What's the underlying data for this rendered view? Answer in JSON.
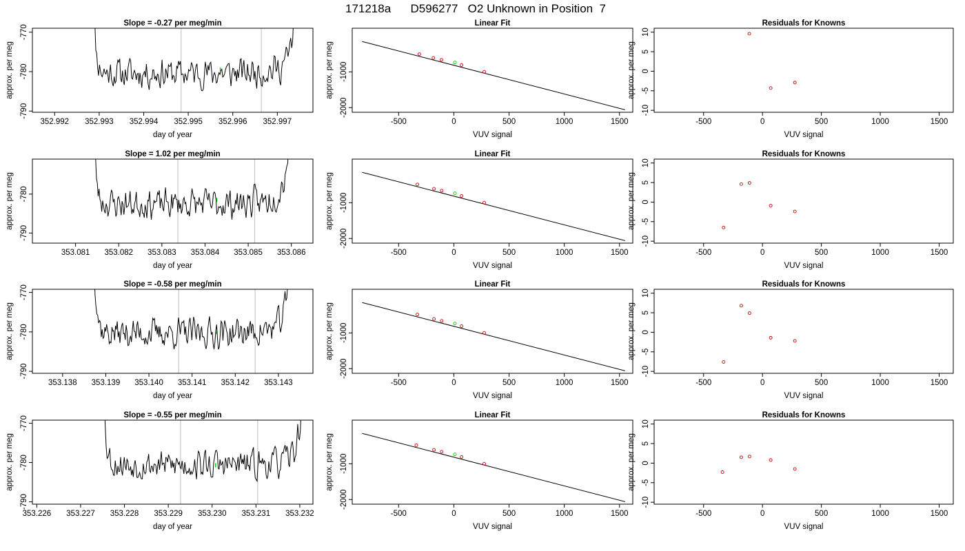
{
  "figure": {
    "supertitle": "171218a      D596277   O2 Unknown in Position  7",
    "colors": {
      "trace": "#000000",
      "marker_unknown": "#00cc00",
      "knowns": "#cc0000",
      "vline": "#bdbdbd",
      "frame": "#000000"
    }
  },
  "chart_data": [
    {
      "type": "line",
      "title": "Slope =  -0.27  per meg/min",
      "xlabel": "day of year",
      "ylabel": "approx. per meg",
      "xlim": [
        352.9915,
        352.9978
      ],
      "ylim": [
        -790.3,
        -769.0
      ],
      "xticks": [
        "352.992",
        "352.993",
        "352.994",
        "352.995",
        "352.996",
        "352.997"
      ],
      "yticks": [
        "-770",
        "-780",
        "-790"
      ],
      "vlines": [
        352.99484,
        352.99664
      ],
      "trace": {
        "x_start": 352.9928,
        "x_end": 352.99755,
        "mean": -780.4,
        "amp": 3.0,
        "seed": 11
      },
      "marker": {
        "x": 352.99572,
        "y": -779.5
      }
    },
    {
      "type": "scatter",
      "title": "Linear Fit",
      "xlabel": "VUV signal",
      "ylabel": "approx. per meg",
      "xlim": [
        -920,
        1620
      ],
      "ylim": [
        -2130,
        220
      ],
      "xticks": [
        "-500",
        "0",
        "500",
        "1000",
        "1500"
      ],
      "yticks": [
        "-1000",
        "-2000"
      ],
      "fit": {
        "x": [
          -830,
          1550
        ],
        "y": [
          -150,
          -2060
        ]
      },
      "knowns": {
        "x": [
          -312,
          -185,
          -112,
          70,
          275
        ],
        "y": [
          -505,
          -610,
          -663,
          -810,
          -998
        ]
      },
      "unknown": {
        "x": 10,
        "y": -737
      }
    },
    {
      "type": "scatter",
      "title": "Residuals for Knowns",
      "xlabel": "VUV signal",
      "ylabel": "approx. per meg",
      "xlim": [
        -920,
        1620
      ],
      "ylim": [
        -10.5,
        11.0
      ],
      "xticks": [
        "-500",
        "0",
        "500",
        "1000",
        "1500"
      ],
      "yticks": [
        "10",
        "5",
        "0",
        "-5",
        "-10"
      ],
      "points": {
        "x": [
          -112,
          70,
          275
        ],
        "y": [
          9.6,
          -4.3,
          -2.9
        ]
      }
    },
    {
      "type": "line",
      "title": "Slope =  1.02  per meg/min",
      "xlabel": "day of year",
      "ylabel": "approx. per meg",
      "xlim": [
        353.08,
        353.0865
      ],
      "ylim": [
        -792.6,
        -771.0
      ],
      "xticks": [
        "353.081",
        "353.082",
        "353.083",
        "353.084",
        "353.085",
        "353.086"
      ],
      "yticks": [
        "-780",
        "-790"
      ],
      "vlines": [
        353.08337,
        353.08515
      ],
      "trace": {
        "x_start": 353.08136,
        "x_end": 353.08608,
        "mean": -782.5,
        "amp": 3.0,
        "seed": 23
      },
      "marker": {
        "x": 353.08427,
        "y": -781.5
      }
    },
    {
      "type": "scatter",
      "title": "Linear Fit",
      "xlabel": "VUV signal",
      "ylabel": "approx. per meg",
      "xlim": [
        -920,
        1620
      ],
      "ylim": [
        -2130,
        220
      ],
      "xticks": [
        "-500",
        "0",
        "500",
        "1000",
        "1500"
      ],
      "yticks": [
        "-1000",
        "-2000"
      ],
      "fit": {
        "x": [
          -830,
          1550
        ],
        "y": [
          -150,
          -2060
        ]
      },
      "knowns": {
        "x": [
          -330,
          -180,
          -110,
          70,
          275
        ],
        "y": [
          -490,
          -610,
          -663,
          -810,
          -998
        ]
      },
      "unknown": {
        "x": 10,
        "y": -737
      }
    },
    {
      "type": "scatter",
      "title": "Residuals for Knowns",
      "xlabel": "VUV signal",
      "ylabel": "approx. per meg",
      "xlim": [
        -920,
        1620
      ],
      "ylim": [
        -10.5,
        11.0
      ],
      "xticks": [
        "-500",
        "0",
        "500",
        "1000",
        "1500"
      ],
      "yticks": [
        "10",
        "5",
        "0",
        "-5",
        "-10"
      ],
      "points": {
        "x": [
          -330,
          -180,
          -110,
          70,
          275
        ],
        "y": [
          -6.5,
          4.6,
          4.9,
          -0.9,
          -2.4
        ]
      }
    },
    {
      "type": "line",
      "title": "Slope =  -0.58  per meg/min",
      "xlabel": "day of year",
      "ylabel": "approx. per meg",
      "xlim": [
        353.1373,
        353.1438
      ],
      "ylim": [
        -790.5,
        -769.2
      ],
      "xticks": [
        "353.138",
        "353.139",
        "353.140",
        "353.141",
        "353.142",
        "353.143"
      ],
      "yticks": [
        "-770",
        "-780",
        "-790"
      ],
      "vlines": [
        353.14069,
        353.14246
      ],
      "trace": {
        "x_start": 353.13867,
        "x_end": 353.1434,
        "mean": -780.3,
        "amp": 3.0,
        "seed": 37
      },
      "marker": {
        "x": 353.14156,
        "y": -780.0
      }
    },
    {
      "type": "scatter",
      "title": "Linear Fit",
      "xlabel": "VUV signal",
      "ylabel": "approx. per meg",
      "xlim": [
        -920,
        1620
      ],
      "ylim": [
        -2130,
        220
      ],
      "xticks": [
        "-500",
        "0",
        "500",
        "1000",
        "1500"
      ],
      "yticks": [
        "-1000",
        "-2000"
      ],
      "fit": {
        "x": [
          -830,
          1550
        ],
        "y": [
          -150,
          -2060
        ]
      },
      "knowns": {
        "x": [
          -330,
          -180,
          -110,
          70,
          275
        ],
        "y": [
          -485,
          -610,
          -663,
          -810,
          -998
        ]
      },
      "unknown": {
        "x": 10,
        "y": -737
      }
    },
    {
      "type": "scatter",
      "title": "Residuals for Knowns",
      "xlabel": "VUV signal",
      "ylabel": "approx. per meg",
      "xlim": [
        -920,
        1620
      ],
      "ylim": [
        -10.5,
        11.0
      ],
      "xticks": [
        "-500",
        "0",
        "500",
        "1000",
        "1500"
      ],
      "yticks": [
        "10",
        "5",
        "0",
        "-5",
        "-10"
      ],
      "points": {
        "x": [
          -330,
          -180,
          -110,
          70,
          275
        ],
        "y": [
          -7.6,
          6.8,
          4.9,
          -1.4,
          -2.2
        ]
      }
    },
    {
      "type": "line",
      "title": "Slope =  -0.55  per meg/min",
      "xlabel": "day of year",
      "ylabel": "approx. per meg",
      "xlim": [
        353.2259,
        353.2323
      ],
      "ylim": [
        -790.6,
        -769.2
      ],
      "xticks": [
        "353.226",
        "353.227",
        "353.228",
        "353.229",
        "353.230",
        "353.231",
        "353.232"
      ],
      "yticks": [
        "-770",
        "-780",
        "-790"
      ],
      "vlines": [
        353.22928,
        353.23104
      ],
      "trace": {
        "x_start": 353.22746,
        "x_end": 353.2322,
        "mean": -780.6,
        "amp": 3.0,
        "seed": 53
      },
      "marker": {
        "x": 353.23008,
        "y": -780.7
      }
    },
    {
      "type": "scatter",
      "title": "Linear Fit",
      "xlabel": "VUV signal",
      "ylabel": "approx. per meg",
      "xlim": [
        -920,
        1620
      ],
      "ylim": [
        -2130,
        220
      ],
      "xticks": [
        "-500",
        "0",
        "500",
        "1000",
        "1500"
      ],
      "yticks": [
        "-1000",
        "-2000"
      ],
      "fit": {
        "x": [
          -830,
          1550
        ],
        "y": [
          -150,
          -2060
        ]
      },
      "knowns": {
        "x": [
          -340,
          -180,
          -110,
          70,
          275
        ],
        "y": [
          -480,
          -610,
          -663,
          -810,
          -998
        ]
      },
      "unknown": {
        "x": 10,
        "y": -737
      }
    },
    {
      "type": "scatter",
      "title": "Residuals for Knowns",
      "xlabel": "VUV signal",
      "ylabel": "approx. per meg",
      "xlim": [
        -920,
        1620
      ],
      "ylim": [
        -10.5,
        11.0
      ],
      "xticks": [
        "-500",
        "0",
        "500",
        "1000",
        "1500"
      ],
      "yticks": [
        "10",
        "5",
        "0",
        "-5",
        "-10"
      ],
      "points": {
        "x": [
          -340,
          -180,
          -110,
          70,
          275
        ],
        "y": [
          -2.3,
          1.5,
          1.7,
          0.8,
          -1.5
        ]
      }
    }
  ]
}
